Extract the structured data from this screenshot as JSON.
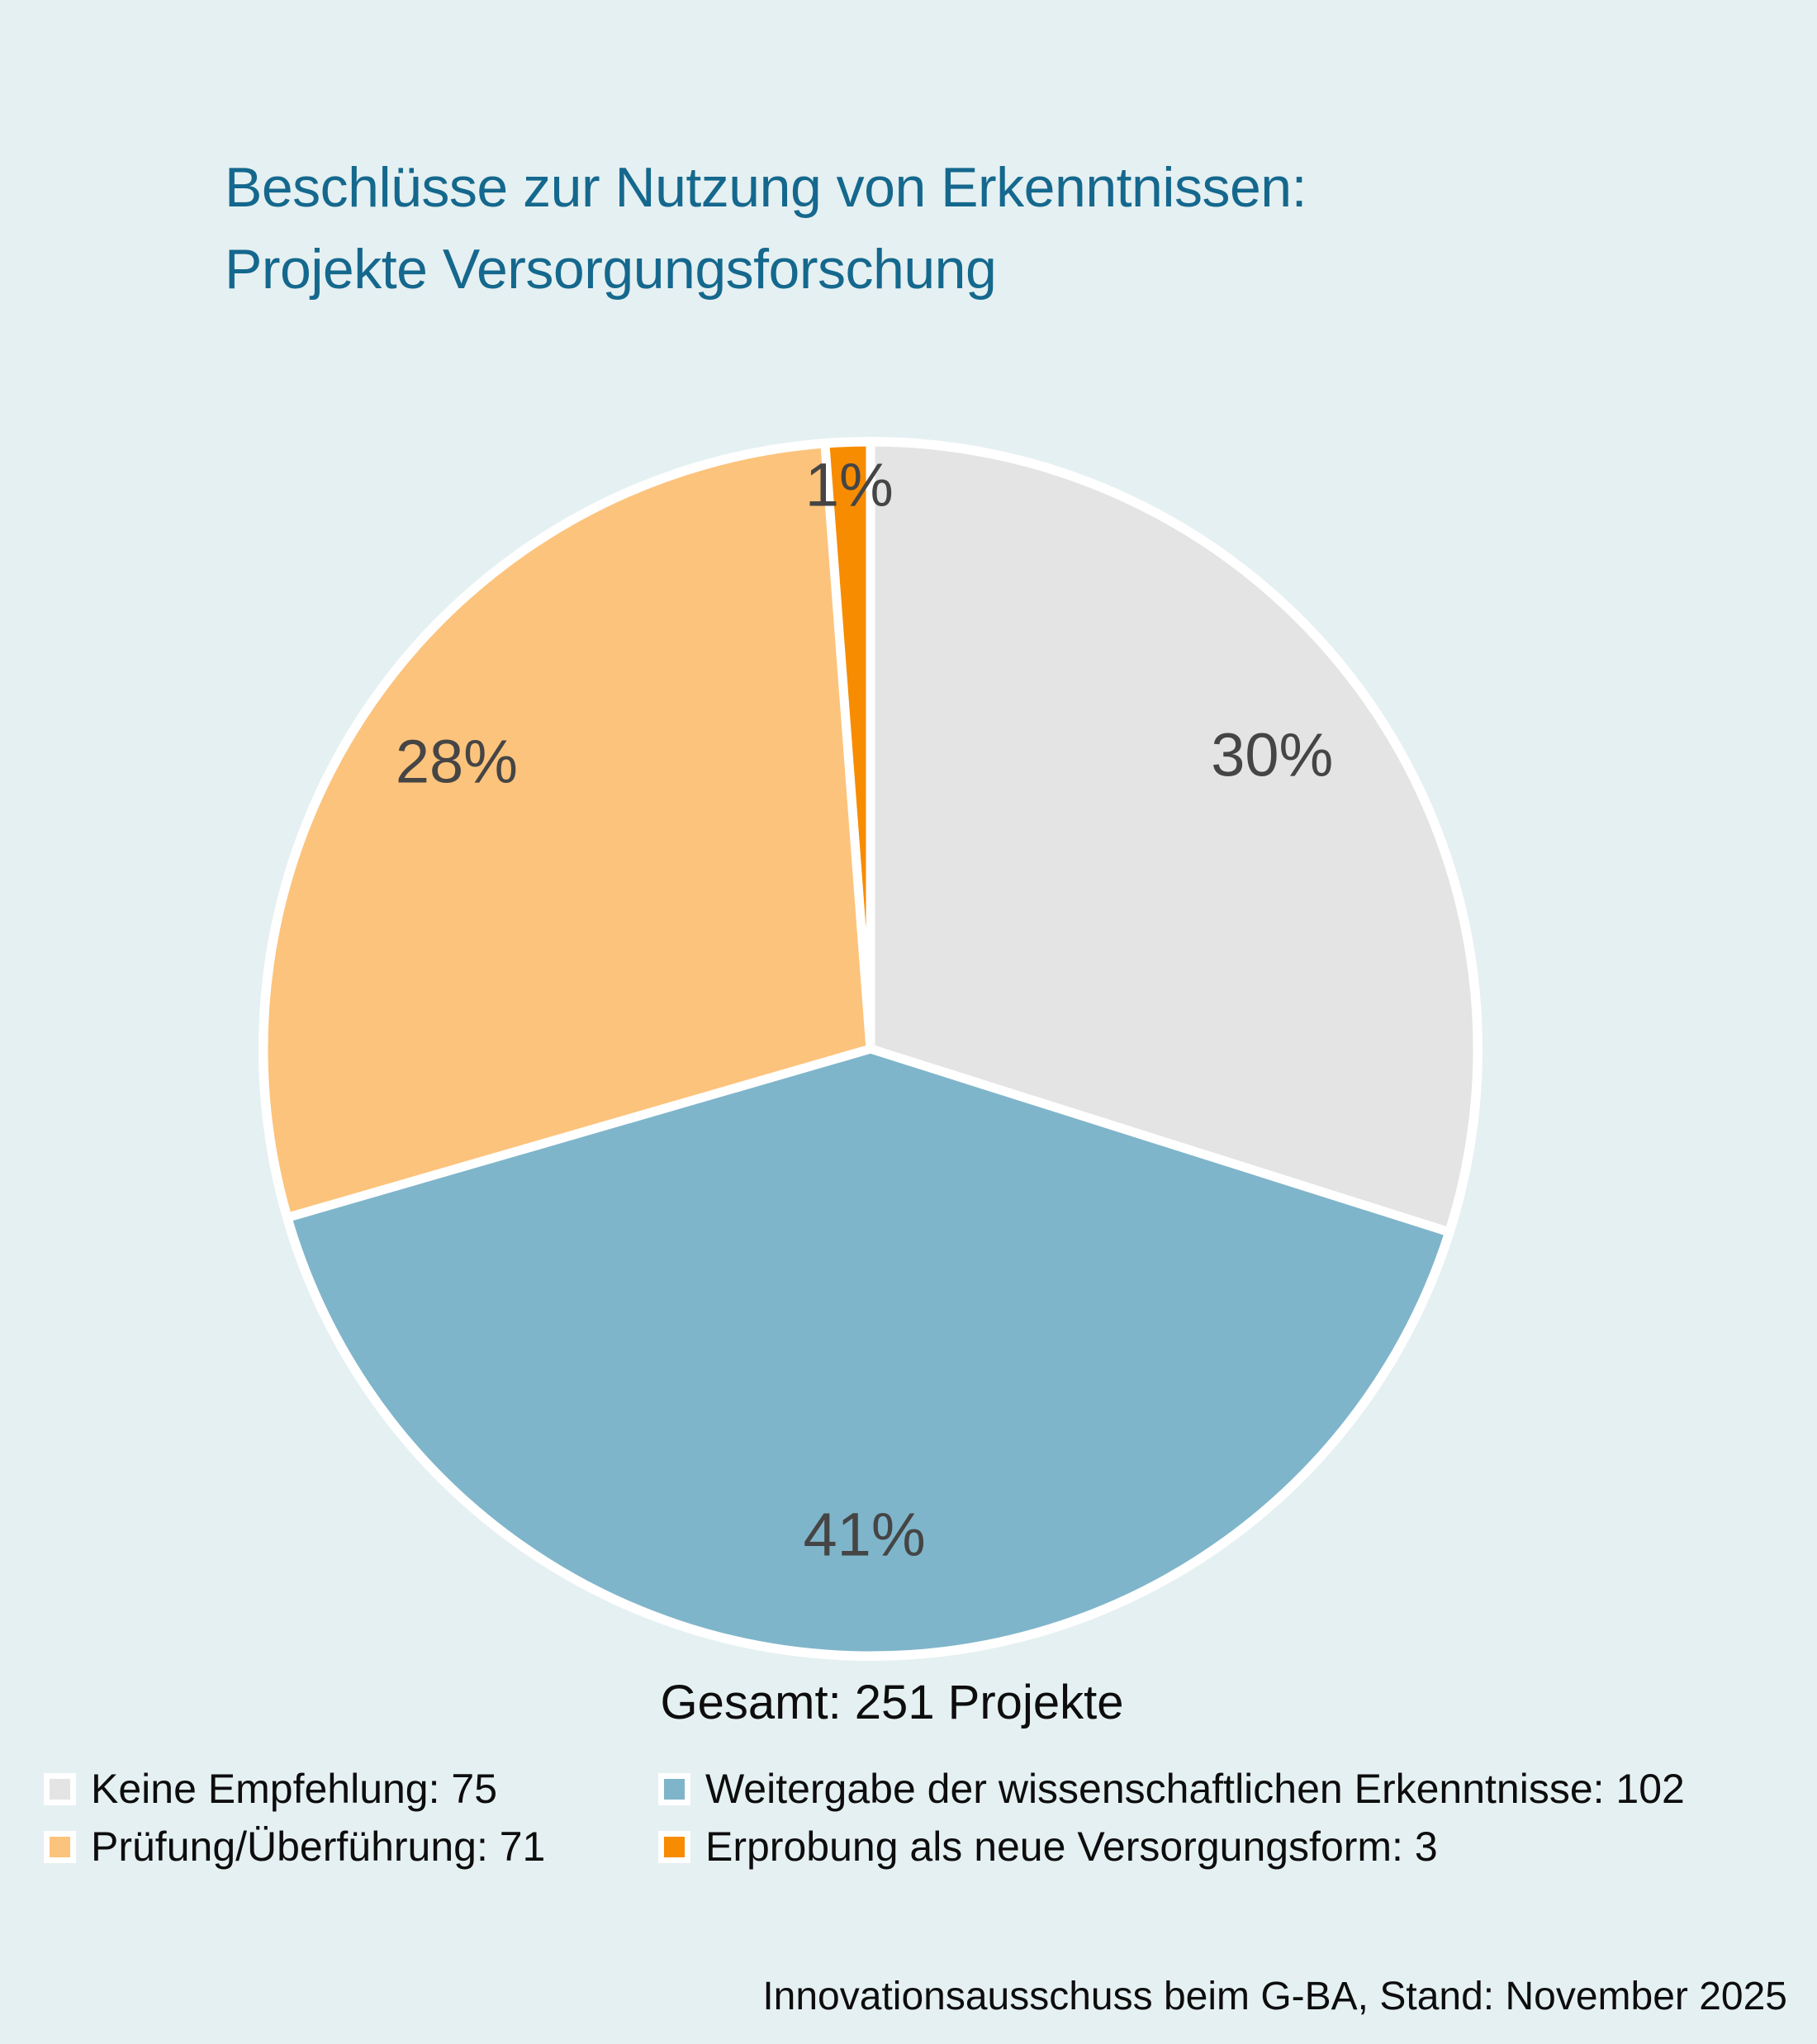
{
  "title": {
    "line1": "Beschlüsse zur Nutzung von Erkenntnissen:",
    "line2": "Projekte Versorgungsforschung"
  },
  "total_label": "Gesamt: 251 Projekte",
  "footer": "Innovationsausschuss beim G-BA, Stand: November 2025",
  "colors": {
    "background": "#E5F0F2",
    "title_text": "#15688D",
    "slice_label_text": "#454545",
    "body_text": "#0D0D0D",
    "separator": "#FFFFFF"
  },
  "chart_data": {
    "type": "pie",
    "title": "Beschlüsse zur Nutzung von Erkenntnissen: Projekte Versorgungsforschung",
    "total": 251,
    "unit": "Projekte",
    "start_angle_deg": 0,
    "direction": "clockwise",
    "legend_position": "bottom",
    "slices": [
      {
        "label": "Keine Empfehlung",
        "value": 75,
        "percent_label": "30%",
        "color": "#E4E4E4"
      },
      {
        "label": "Weitergabe der wissenschaftlichen Erkenntnisse",
        "value": 102,
        "percent_label": "41%",
        "color": "#7FB5CA"
      },
      {
        "label": "Prüfung/Überführung",
        "value": 71,
        "percent_label": "28%",
        "color": "#FCC37C"
      },
      {
        "label": "Erprobung als neue Versorgungsform",
        "value": 3,
        "percent_label": "1%",
        "color": "#F78C00"
      }
    ]
  },
  "legend": {
    "columns": [
      {
        "items": [
          {
            "label": "Keine Empfehlung: 75",
            "color": "#E4E4E4"
          },
          {
            "label": "Prüfung/Überführung: 71",
            "color": "#FCC37C"
          }
        ]
      },
      {
        "items": [
          {
            "label": "Weitergabe der wissenschaftlichen Erkenntnisse: 102",
            "color": "#7FB5CA"
          },
          {
            "label": "Erprobung als neue Versorgungsform: 3",
            "color": "#F78C00"
          }
        ]
      }
    ]
  }
}
